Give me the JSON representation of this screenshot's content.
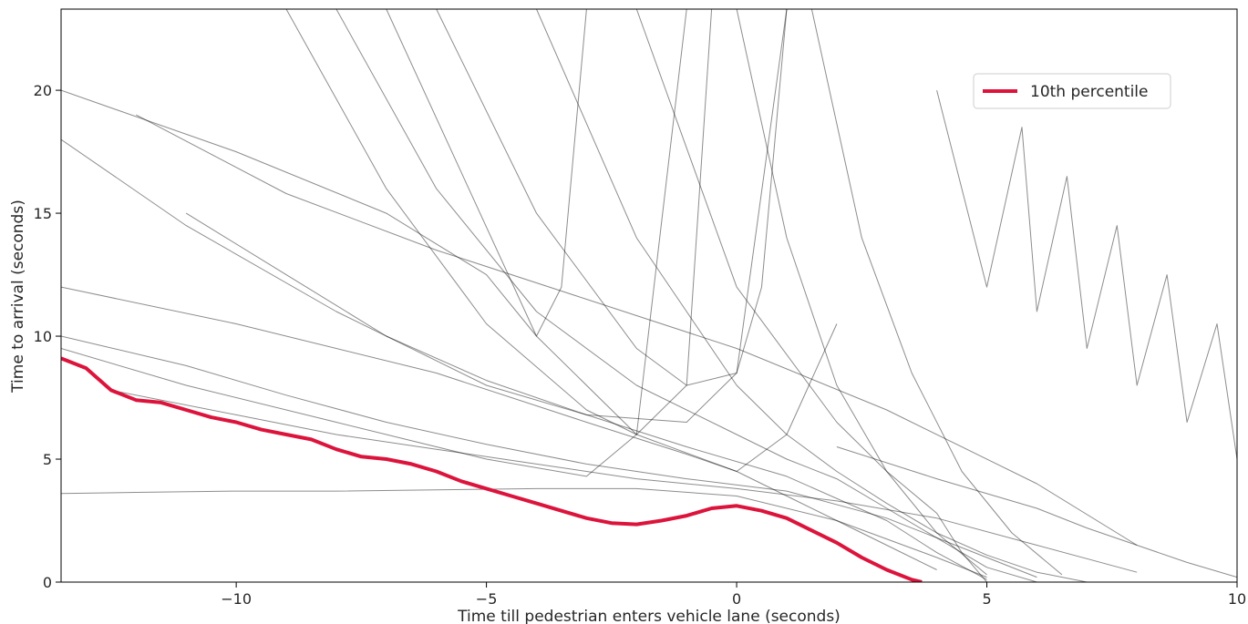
{
  "chart_data": {
    "type": "line",
    "title": "",
    "xlabel": "Time till pedestrian enters vehicle lane (seconds)",
    "ylabel": "Time to arrival (seconds)",
    "xlim": [
      -13.5,
      10
    ],
    "ylim": [
      0,
      23.3
    ],
    "xticks": [
      -10,
      -5,
      0,
      5,
      10
    ],
    "xtick_labels": [
      "−10",
      "−5",
      "0",
      "5",
      "10"
    ],
    "yticks": [
      0,
      5,
      10,
      15,
      20
    ],
    "ytick_labels": [
      "0",
      "5",
      "10",
      "15",
      "20"
    ],
    "grid": false,
    "legend": {
      "position": "top-right",
      "entries": [
        "10th percentile"
      ]
    },
    "colors": {
      "highlight": "#dc143c",
      "traces": "#000000"
    },
    "series": [
      {
        "name": "10th percentile",
        "x": [
          -13.5,
          -13.0,
          -12.5,
          -12.0,
          -11.5,
          -11.0,
          -10.5,
          -10.0,
          -9.5,
          -9.0,
          -8.5,
          -8.0,
          -7.5,
          -7.0,
          -6.5,
          -6.0,
          -5.5,
          -5.0,
          -4.5,
          -4.0,
          -3.5,
          -3.0,
          -2.5,
          -2.0,
          -1.5,
          -1.0,
          -0.5,
          0.0,
          0.5,
          1.0,
          1.5,
          2.0,
          2.5,
          3.0,
          3.5,
          3.7
        ],
        "y": [
          9.1,
          8.7,
          7.8,
          7.4,
          7.3,
          7.0,
          6.7,
          6.5,
          6.2,
          6.0,
          5.8,
          5.4,
          5.1,
          5.0,
          4.8,
          4.5,
          4.1,
          3.8,
          3.5,
          3.2,
          2.9,
          2.6,
          2.4,
          2.35,
          2.5,
          2.7,
          3.0,
          3.1,
          2.9,
          2.6,
          2.1,
          1.6,
          1.0,
          0.5,
          0.1,
          0.0
        ]
      },
      {
        "name": "",
        "x": [
          -13.5,
          -10,
          -6,
          -3,
          -1,
          0,
          1,
          2,
          3,
          4
        ],
        "y": [
          12.0,
          10.5,
          8.5,
          6.5,
          5.2,
          4.5,
          3.5,
          2.5,
          1.5,
          0.5
        ]
      },
      {
        "name": "",
        "x": [
          -13.5,
          -11,
          -8,
          -5,
          -3,
          -1,
          0,
          1
        ],
        "y": [
          18.0,
          14.5,
          11.0,
          8.0,
          6.8,
          6.5,
          8.5,
          23.3
        ]
      },
      {
        "name": "",
        "x": [
          -13.5,
          -11,
          -8,
          -5,
          -3,
          -2,
          -1
        ],
        "y": [
          9.5,
          8.0,
          6.5,
          5.0,
          4.3,
          6.0,
          23.3
        ]
      },
      {
        "name": "",
        "x": [
          -13.5,
          -12,
          -10,
          -8,
          -6,
          -4,
          -2,
          0,
          2,
          4,
          5
        ],
        "y": [
          3.6,
          3.65,
          3.7,
          3.7,
          3.75,
          3.8,
          3.8,
          3.5,
          2.5,
          1.0,
          0.2
        ]
      },
      {
        "name": "",
        "x": [
          -11,
          -9,
          -7,
          -5,
          -3,
          -1,
          1,
          3,
          4,
          5
        ],
        "y": [
          15.0,
          12.5,
          10.0,
          8.2,
          6.8,
          5.5,
          4.3,
          2.5,
          1.2,
          0.1
        ]
      },
      {
        "name": "",
        "x": [
          -8,
          -6,
          -4,
          -2,
          0,
          1,
          2,
          3,
          4,
          5,
          6
        ],
        "y": [
          23.3,
          16.0,
          11.0,
          8.0,
          6.0,
          5.0,
          4.2,
          3.0,
          1.8,
          0.6,
          0.0
        ]
      },
      {
        "name": "",
        "x": [
          -6,
          -4,
          -2,
          -1,
          0,
          0.5,
          1
        ],
        "y": [
          23.3,
          15.0,
          9.5,
          8.0,
          8.5,
          12.0,
          23.3
        ]
      },
      {
        "name": "",
        "x": [
          -4,
          -2,
          0,
          1,
          2,
          3,
          4,
          5,
          6,
          7
        ],
        "y": [
          23.3,
          14.0,
          8.0,
          6.0,
          4.5,
          3.2,
          2.0,
          1.1,
          0.4,
          0.0
        ]
      },
      {
        "name": "",
        "x": [
          -12.5,
          -10,
          -8,
          -6,
          -4,
          -2,
          0,
          2,
          4,
          6,
          8
        ],
        "y": [
          7.8,
          6.8,
          6.0,
          5.4,
          4.8,
          4.2,
          3.8,
          3.3,
          2.6,
          1.5,
          0.4
        ]
      },
      {
        "name": "",
        "x": [
          -2,
          0,
          2,
          3,
          4,
          4.5,
          5
        ],
        "y": [
          23.3,
          12.0,
          6.5,
          4.5,
          2.8,
          1.2,
          0.0
        ]
      },
      {
        "name": "",
        "x": [
          0,
          1,
          2,
          3,
          4,
          5
        ],
        "y": [
          23.3,
          14.0,
          8.0,
          4.5,
          2.0,
          0.3
        ]
      },
      {
        "name": "",
        "x": [
          1.5,
          2.5,
          3.5,
          4.5,
          5.5,
          6.5
        ],
        "y": [
          23.3,
          14.0,
          8.5,
          4.5,
          2.0,
          0.3
        ]
      },
      {
        "name": "",
        "x": [
          4,
          5,
          5.7,
          6,
          6.6,
          7,
          7.6,
          8,
          8.6,
          9,
          9.6,
          10
        ],
        "y": [
          20.0,
          12.0,
          18.5,
          11.0,
          16.5,
          9.5,
          14.5,
          8.0,
          12.5,
          6.5,
          10.5,
          5.0
        ]
      },
      {
        "name": "",
        "x": [
          2,
          4,
          6,
          7,
          8,
          9,
          10
        ],
        "y": [
          5.5,
          4.2,
          3.0,
          2.2,
          1.5,
          0.8,
          0.2
        ]
      },
      {
        "name": "",
        "x": [
          -13.5,
          -11,
          -9,
          -7,
          -5,
          -3,
          -1,
          1,
          3,
          5,
          6
        ],
        "y": [
          10.0,
          8.8,
          7.6,
          6.5,
          5.6,
          4.8,
          4.2,
          3.7,
          2.6,
          1.0,
          0.2
        ]
      },
      {
        "name": "",
        "x": [
          -13.5,
          -10,
          -7,
          -5,
          -4,
          -3.5,
          -3
        ],
        "y": [
          20.0,
          17.5,
          15.0,
          12.5,
          10.0,
          12.0,
          23.3
        ]
      },
      {
        "name": "",
        "x": [
          -12,
          -9,
          -6,
          -3,
          0,
          3,
          6,
          8
        ],
        "y": [
          19.0,
          15.8,
          13.5,
          11.5,
          9.5,
          7.0,
          4.0,
          1.5
        ]
      },
      {
        "name": "",
        "x": [
          -7,
          -4,
          -2,
          0,
          1,
          2
        ],
        "y": [
          23.3,
          10.0,
          6.0,
          4.5,
          6.0,
          10.5
        ]
      },
      {
        "name": "",
        "x": [
          -9,
          -7,
          -5,
          -3,
          -2,
          -1,
          -0.5
        ],
        "y": [
          23.3,
          16.0,
          10.5,
          7.0,
          6.0,
          8.0,
          23.3
        ]
      }
    ]
  }
}
